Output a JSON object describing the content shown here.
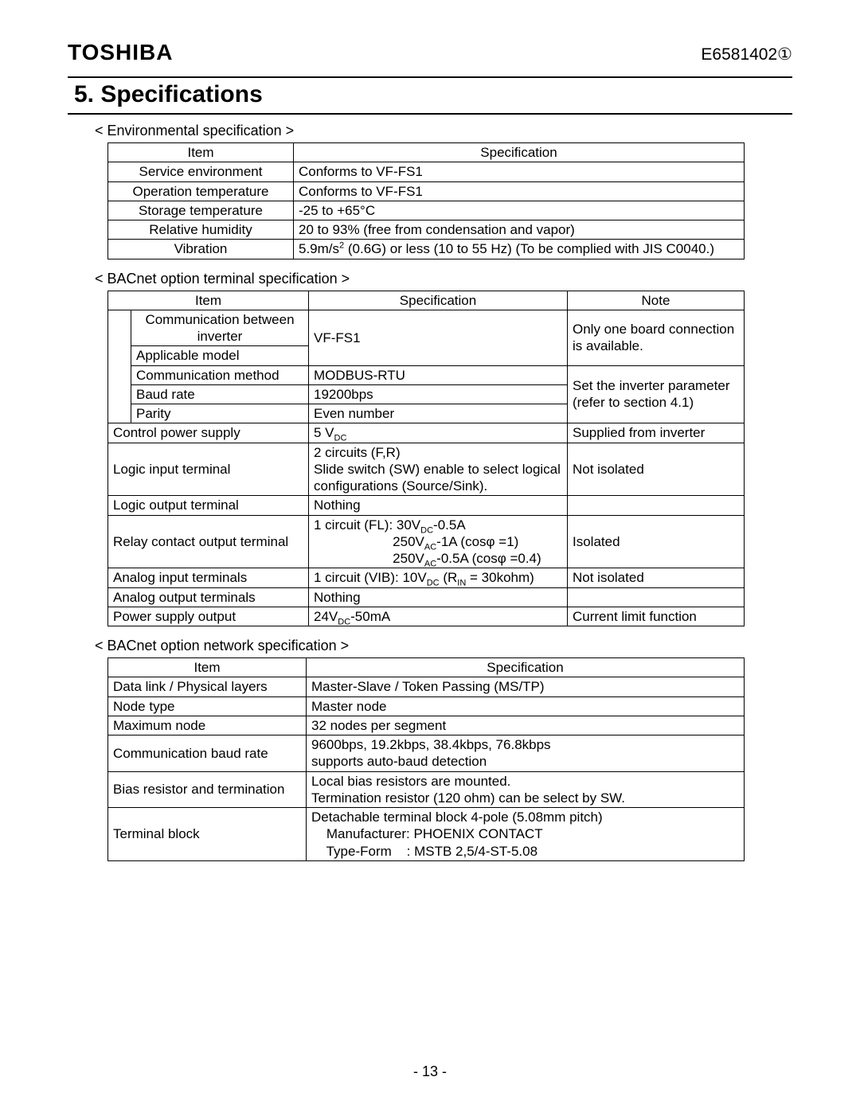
{
  "header": {
    "brand": "TOSHIBA",
    "docnum": "E6581402①"
  },
  "section_title": "5.  Specifications",
  "env": {
    "title": "< Environmental specification >",
    "head": {
      "item": "Item",
      "spec": "Specification"
    },
    "rows": [
      {
        "item": "Service environment",
        "spec": "Conforms to VF-FS1"
      },
      {
        "item": "Operation temperature",
        "spec": "Conforms to VF-FS1"
      },
      {
        "item": "Storage temperature",
        "spec": "-25 to +65°C"
      },
      {
        "item": "Relative humidity",
        "spec": "20 to 93% (free from condensation and vapor)"
      },
      {
        "item": "Vibration",
        "spec_html": "5.9m/s<sup>2</sup> (0.6G) or less (10 to 55 Hz) (To be complied with JIS C0040.)"
      }
    ]
  },
  "term": {
    "title": "< BACnet option terminal specification >",
    "head": {
      "item": "Item",
      "spec": "Specification",
      "note": "Note"
    },
    "rows": {
      "comm_inv": "Communication between inverter",
      "applicable": "Applicable model",
      "vf": "VF-FS1",
      "one_board": "Only one board connection is available.",
      "method": "Communication method",
      "modbus": "MODBUS-RTU",
      "baud": "Baud rate",
      "baud_v": "19200bps",
      "parity": "Parity",
      "parity_v": "Even number",
      "set_param": "Set the inverter parameter (refer to section 4.1)",
      "ctrl": "Control power supply",
      "ctrl_v_html": "5 V<sub>DC</sub>",
      "ctrl_note": "Supplied from inverter",
      "login": "Logic input terminal",
      "login_v": "2 circuits (F,R)\nSlide switch (SW) enable to select logical configurations (Source/Sink).",
      "login_note": "Not isolated",
      "logout": "Logic output terminal",
      "logout_v": "Nothing",
      "relay": "Relay contact output terminal",
      "relay_v_html": "1 circuit (FL): 30V<sub>DC</sub>-0.5A<br>&nbsp;&nbsp;&nbsp;&nbsp;&nbsp;&nbsp;&nbsp;&nbsp;&nbsp;&nbsp;&nbsp;&nbsp;&nbsp;&nbsp;&nbsp;&nbsp;&nbsp;&nbsp;&nbsp;&nbsp;&nbsp;250V<sub>AC</sub>-1A (cosφ =1)<br>&nbsp;&nbsp;&nbsp;&nbsp;&nbsp;&nbsp;&nbsp;&nbsp;&nbsp;&nbsp;&nbsp;&nbsp;&nbsp;&nbsp;&nbsp;&nbsp;&nbsp;&nbsp;&nbsp;&nbsp;&nbsp;250V<sub>AC</sub>-0.5A (cosφ =0.4)",
      "relay_note": "Isolated",
      "ain": "Analog input terminals",
      "ain_v_html": "1 circuit (VIB):  10V<sub>DC</sub> (R<sub>IN</sub> = 30kohm)",
      "ain_note": "Not isolated",
      "aout": "Analog output terminals",
      "aout_v": "Nothing",
      "psup": "Power supply output",
      "psup_v_html": "24V<sub>DC</sub>-50mA",
      "psup_note": "Current limit function"
    }
  },
  "net": {
    "title": "< BACnet option network specification >",
    "head": {
      "item": "Item",
      "spec": "Specification"
    },
    "rows": [
      {
        "item": "Data link / Physical layers",
        "spec": "Master-Slave / Token Passing (MS/TP)"
      },
      {
        "item": "Node type",
        "spec": "Master node"
      },
      {
        "item": "Maximum node",
        "spec": "32 nodes per segment"
      },
      {
        "item": "Communication baud rate",
        "spec": "9600bps, 19.2kbps, 38.4kbps, 76.8kbps\nsupports auto-baud detection"
      },
      {
        "item": "Bias resistor and termination",
        "spec": "Local bias resistors are mounted.\nTermination resistor (120 ohm) can be select by SW."
      },
      {
        "item": "Terminal block",
        "spec": "Detachable terminal block 4-pole (5.08mm pitch)\n    Manufacturer: PHOENIX CONTACT\n    Type-Form    : MSTB 2,5/4-ST-5.08"
      }
    ]
  },
  "page": "- 13 -"
}
